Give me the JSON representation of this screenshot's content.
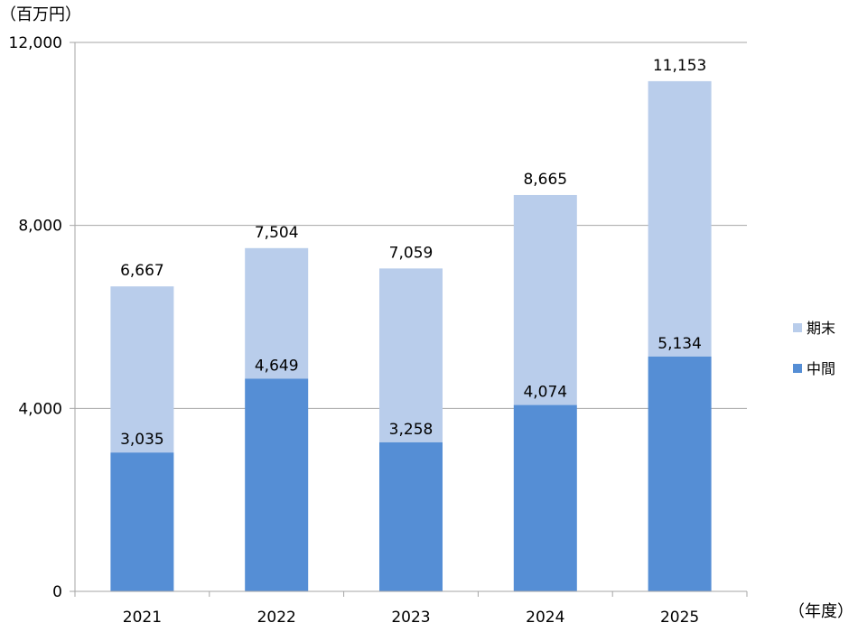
{
  "chart_data": {
    "type": "bar",
    "stacked": true,
    "categories": [
      "2021",
      "2022",
      "2023",
      "2024",
      "2025"
    ],
    "series": [
      {
        "name": "中間",
        "values": [
          3035,
          4649,
          3258,
          4074,
          5134
        ],
        "color": "#558ed5",
        "value_labels": [
          "3,035",
          "4,649",
          "3,258",
          "4,074",
          "5,134"
        ]
      },
      {
        "name": "期末",
        "cumulative_totals": [
          6667,
          7504,
          7059,
          8665,
          11153
        ],
        "color": "#b9cdeb",
        "value_labels": [
          "6,667",
          "7,504",
          "7,059",
          "8,665",
          "11,153"
        ]
      }
    ],
    "ylabel": "（百万円）",
    "xlabel": "（年度）",
    "ylim": [
      0,
      12000
    ],
    "yticks": [
      0,
      4000,
      8000,
      12000
    ],
    "ytick_labels": [
      "0",
      "4,000",
      "8,000",
      "12,000"
    ],
    "grid": true,
    "legend_position": "right",
    "legend_order": [
      "期末",
      "中間"
    ]
  },
  "colors": {
    "grid": "#a6a6a6",
    "axis": "#a6a6a6",
    "text": "#000000"
  }
}
